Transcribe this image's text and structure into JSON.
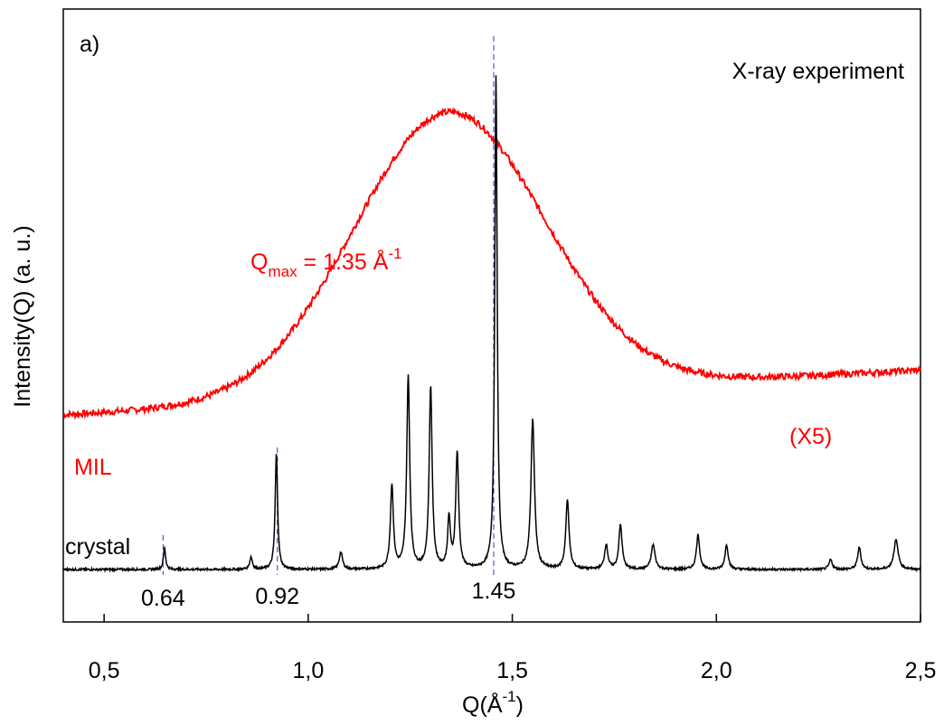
{
  "chart_data": {
    "type": "line",
    "panel_label": "a)",
    "title": "X-ray experiment",
    "xlabel": "Q(Å",
    "xlabel_sup": "-1",
    "xlabel_close": ")",
    "ylabel": "Intensity(Q) (a. u.)",
    "xlim": [
      0.4,
      2.5
    ],
    "x_ticks": [
      {
        "value": 0.5,
        "label": "0,5"
      },
      {
        "value": 1.0,
        "label": "1,0"
      },
      {
        "value": 1.5,
        "label": "1,5"
      },
      {
        "value": 2.0,
        "label": "2,0"
      },
      {
        "value": 2.5,
        "label": "2,5"
      }
    ],
    "series": [
      {
        "name": "MIL",
        "color": "#ff0000",
        "scale_label": "(X5)",
        "baseline": 0.29,
        "peaks": [
          {
            "x": 1.345,
            "height": 0.53,
            "width": 0.33
          }
        ],
        "offset_slope": 0.04
      },
      {
        "name": "crystal",
        "color": "#000000",
        "baseline": 0.115,
        "peaks": [
          {
            "x": 0.648,
            "height": 0.045,
            "width": 0.004
          },
          {
            "x": 0.86,
            "height": 0.025,
            "width": 0.005
          },
          {
            "x": 0.922,
            "height": 0.235,
            "width": 0.0045
          },
          {
            "x": 1.08,
            "height": 0.035,
            "width": 0.006
          },
          {
            "x": 1.205,
            "height": 0.17,
            "width": 0.0055
          },
          {
            "x": 1.245,
            "height": 0.39,
            "width": 0.0055
          },
          {
            "x": 1.3,
            "height": 0.37,
            "width": 0.0055
          },
          {
            "x": 1.345,
            "height": 0.1,
            "width": 0.005
          },
          {
            "x": 1.365,
            "height": 0.235,
            "width": 0.0055
          },
          {
            "x": 1.46,
            "height": 1.0,
            "width": 0.0045
          },
          {
            "x": 1.55,
            "height": 0.305,
            "width": 0.0065
          },
          {
            "x": 1.635,
            "height": 0.14,
            "width": 0.006
          },
          {
            "x": 1.73,
            "height": 0.05,
            "width": 0.006
          },
          {
            "x": 1.765,
            "height": 0.09,
            "width": 0.006
          },
          {
            "x": 1.845,
            "height": 0.05,
            "width": 0.007
          },
          {
            "x": 1.955,
            "height": 0.07,
            "width": 0.006
          },
          {
            "x": 2.025,
            "height": 0.05,
            "width": 0.006
          },
          {
            "x": 2.28,
            "height": 0.02,
            "width": 0.006
          },
          {
            "x": 2.35,
            "height": 0.045,
            "width": 0.006
          },
          {
            "x": 2.44,
            "height": 0.06,
            "width": 0.008
          }
        ]
      }
    ],
    "markers": [
      {
        "x": 0.64,
        "label": "0.64",
        "color": "#3333cc"
      },
      {
        "x": 0.92,
        "label": "0.92",
        "color": "#3333cc"
      },
      {
        "x": 1.45,
        "label": "1.45",
        "color": "#3333cc"
      }
    ],
    "annotation": {
      "prefix": "Q",
      "sub": "max",
      "mid": " = 1.35 Å",
      "sup": "-1",
      "color": "#ff0000"
    }
  }
}
